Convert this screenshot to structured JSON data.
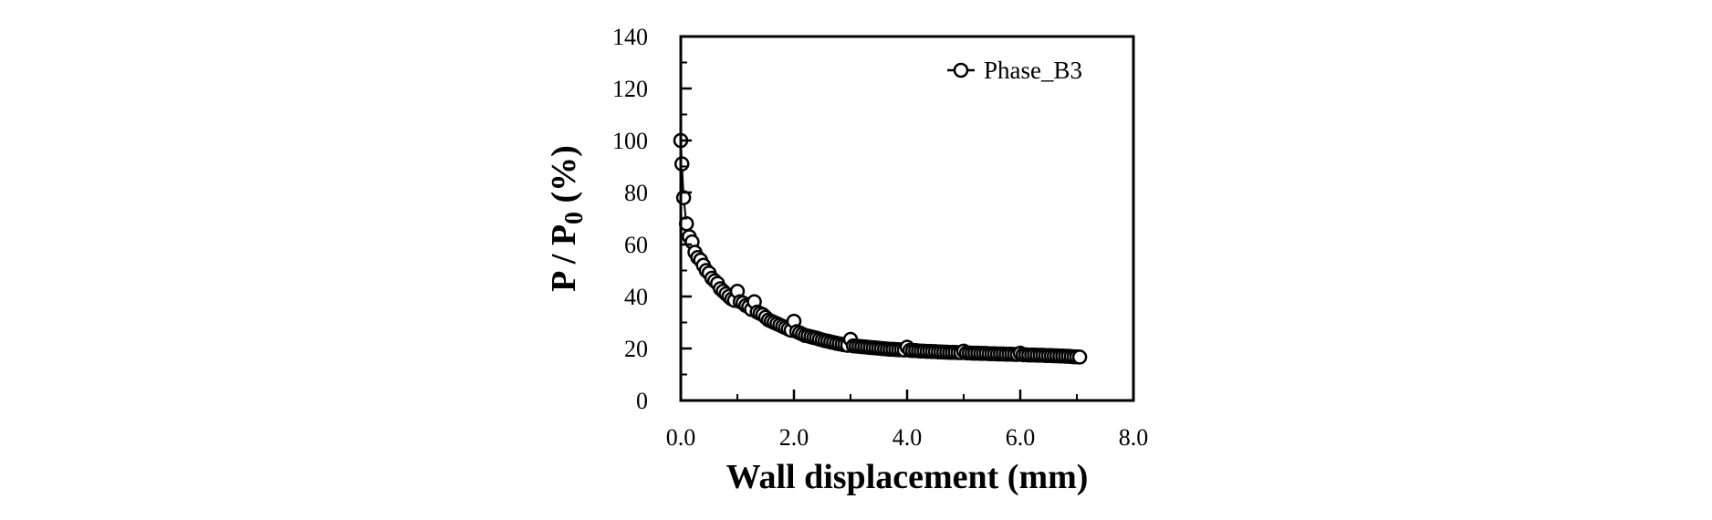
{
  "chart_data": {
    "type": "scatter",
    "xlabel": "Wall displacement (mm)",
    "ylabel": {
      "main": "P / P",
      "sub": "0",
      "suffix": " (%)"
    },
    "xlim": [
      0,
      8
    ],
    "ylim": [
      0,
      140
    ],
    "x_ticks": [
      0,
      2,
      4,
      6,
      8
    ],
    "x_tick_labels": [
      "0.0",
      "2.0",
      "4.0",
      "6.0",
      "8.0"
    ],
    "y_ticks": [
      0,
      20,
      40,
      60,
      80,
      100,
      120,
      140
    ],
    "y_tick_labels": [
      "0",
      "20",
      "40",
      "60",
      "80",
      "100",
      "120",
      "140"
    ],
    "grid": false,
    "legend_position": "top-right",
    "colors": {
      "marker_fill": "#ffffff",
      "marker_stroke": "#000000",
      "line": "#000000"
    },
    "series": [
      {
        "name": "Phase_B3",
        "marker": "open-circle",
        "x": [
          0.0,
          0.02,
          0.05,
          0.1,
          0.15,
          0.2,
          0.25,
          0.3,
          0.35,
          0.4,
          0.45,
          0.5,
          0.55,
          0.6,
          0.65,
          0.7,
          0.75,
          0.8,
          0.85,
          0.9,
          0.95,
          1.0,
          1.05,
          1.1,
          1.15,
          1.2,
          1.25,
          1.3,
          1.35,
          1.4,
          1.45,
          1.5,
          1.55,
          1.6,
          1.65,
          1.7,
          1.75,
          1.8,
          1.85,
          1.9,
          1.95,
          2.0,
          2.05,
          2.1,
          2.15,
          2.2,
          2.25,
          2.3,
          2.35,
          2.4,
          2.45,
          2.5,
          2.55,
          2.6,
          2.65,
          2.7,
          2.75,
          2.8,
          2.85,
          2.9,
          2.95,
          3.0,
          3.05,
          3.1,
          3.15,
          3.2,
          3.25,
          3.3,
          3.35,
          3.4,
          3.45,
          3.5,
          3.55,
          3.6,
          3.65,
          3.7,
          3.75,
          3.8,
          3.85,
          3.9,
          3.95,
          4.0,
          4.05,
          4.1,
          4.15,
          4.2,
          4.25,
          4.3,
          4.35,
          4.4,
          4.45,
          4.5,
          4.55,
          4.6,
          4.65,
          4.7,
          4.75,
          4.8,
          4.85,
          4.9,
          4.95,
          5.0,
          5.05,
          5.1,
          5.15,
          5.2,
          5.25,
          5.3,
          5.35,
          5.4,
          5.45,
          5.5,
          5.55,
          5.6,
          5.65,
          5.7,
          5.75,
          5.8,
          5.85,
          5.9,
          5.95,
          6.0,
          6.05,
          6.1,
          6.15,
          6.2,
          6.25,
          6.3,
          6.35,
          6.4,
          6.45,
          6.5,
          6.55,
          6.6,
          6.65,
          6.7,
          6.75,
          6.8,
          6.85,
          6.9,
          6.95,
          7.0,
          7.05
        ],
        "y": [
          100,
          91,
          78,
          68,
          63,
          61,
          57,
          55,
          54,
          52,
          50,
          49,
          47,
          46,
          45,
          43,
          42,
          41,
          40,
          39,
          38.5,
          42,
          38,
          37.5,
          36.5,
          36,
          35,
          38,
          34,
          33.5,
          33,
          32,
          31,
          30.5,
          30,
          29.5,
          29,
          28.5,
          28,
          27.5,
          27,
          30.5,
          26.5,
          26,
          25.5,
          25,
          24.8,
          24.5,
          24.2,
          24,
          23.6,
          23.3,
          23,
          22.8,
          22.5,
          22.3,
          22,
          21.8,
          21.6,
          21.4,
          21.2,
          23.5,
          21,
          20.9,
          20.8,
          20.7,
          20.6,
          20.5,
          20.4,
          20.3,
          20.2,
          20.1,
          20,
          19.9,
          19.8,
          19.7,
          19.7,
          19.6,
          19.5,
          19.5,
          19.4,
          20.5,
          19.3,
          19.2,
          19.2,
          19.1,
          19,
          19,
          18.9,
          18.9,
          18.8,
          18.8,
          18.7,
          18.7,
          18.6,
          18.6,
          18.5,
          18.5,
          18.5,
          18.4,
          18.4,
          19,
          18.3,
          18.3,
          18.2,
          18.2,
          18.2,
          18.1,
          18.1,
          18.1,
          18,
          18,
          18,
          17.9,
          17.9,
          17.9,
          17.8,
          17.8,
          17.8,
          17.7,
          17.7,
          18.2,
          17.6,
          17.6,
          17.5,
          17.5,
          17.5,
          17.4,
          17.4,
          17.4,
          17.3,
          17.3,
          17.3,
          17.2,
          17.2,
          17.1,
          17.1,
          17.0,
          17.0,
          16.9,
          16.8,
          16.8,
          16.7
        ]
      }
    ]
  }
}
